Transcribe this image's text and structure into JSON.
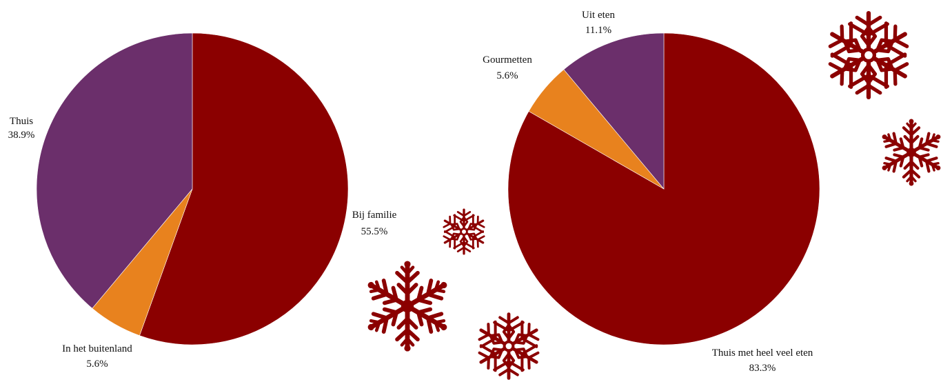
{
  "colors": {
    "dark_red": "#8b0000",
    "orange": "#e8821e",
    "purple": "#6b2f6b",
    "snowflake": "#8b0000",
    "background": "#ffffff"
  },
  "chart_data": [
    {
      "type": "pie",
      "title": "",
      "start": "12 o'clock, clockwise",
      "slices": [
        {
          "label": "Bij familie",
          "pct_label": "55.5%",
          "value": 55.5,
          "color": "#8b0000"
        },
        {
          "label": "In het buitenland",
          "pct_label": "5.6%",
          "value": 5.6,
          "color": "#e8821e"
        },
        {
          "label": "Thuis",
          "pct_label": "38.9%",
          "value": 38.9,
          "color": "#6b2f6b"
        }
      ]
    },
    {
      "type": "pie",
      "title": "",
      "start": "12 o'clock, clockwise",
      "slices": [
        {
          "label": "Thuis met heel veel eten",
          "pct_label": "83.3%",
          "value": 83.3,
          "color": "#8b0000"
        },
        {
          "label": "Gourmetten",
          "pct_label": "5.6%",
          "value": 5.6,
          "color": "#e8821e"
        },
        {
          "label": "Uit eten",
          "pct_label": "11.1%",
          "value": 11.1,
          "color": "#6b2f6b"
        }
      ]
    }
  ],
  "decorations": {
    "snowflake_icon_count": 5
  }
}
